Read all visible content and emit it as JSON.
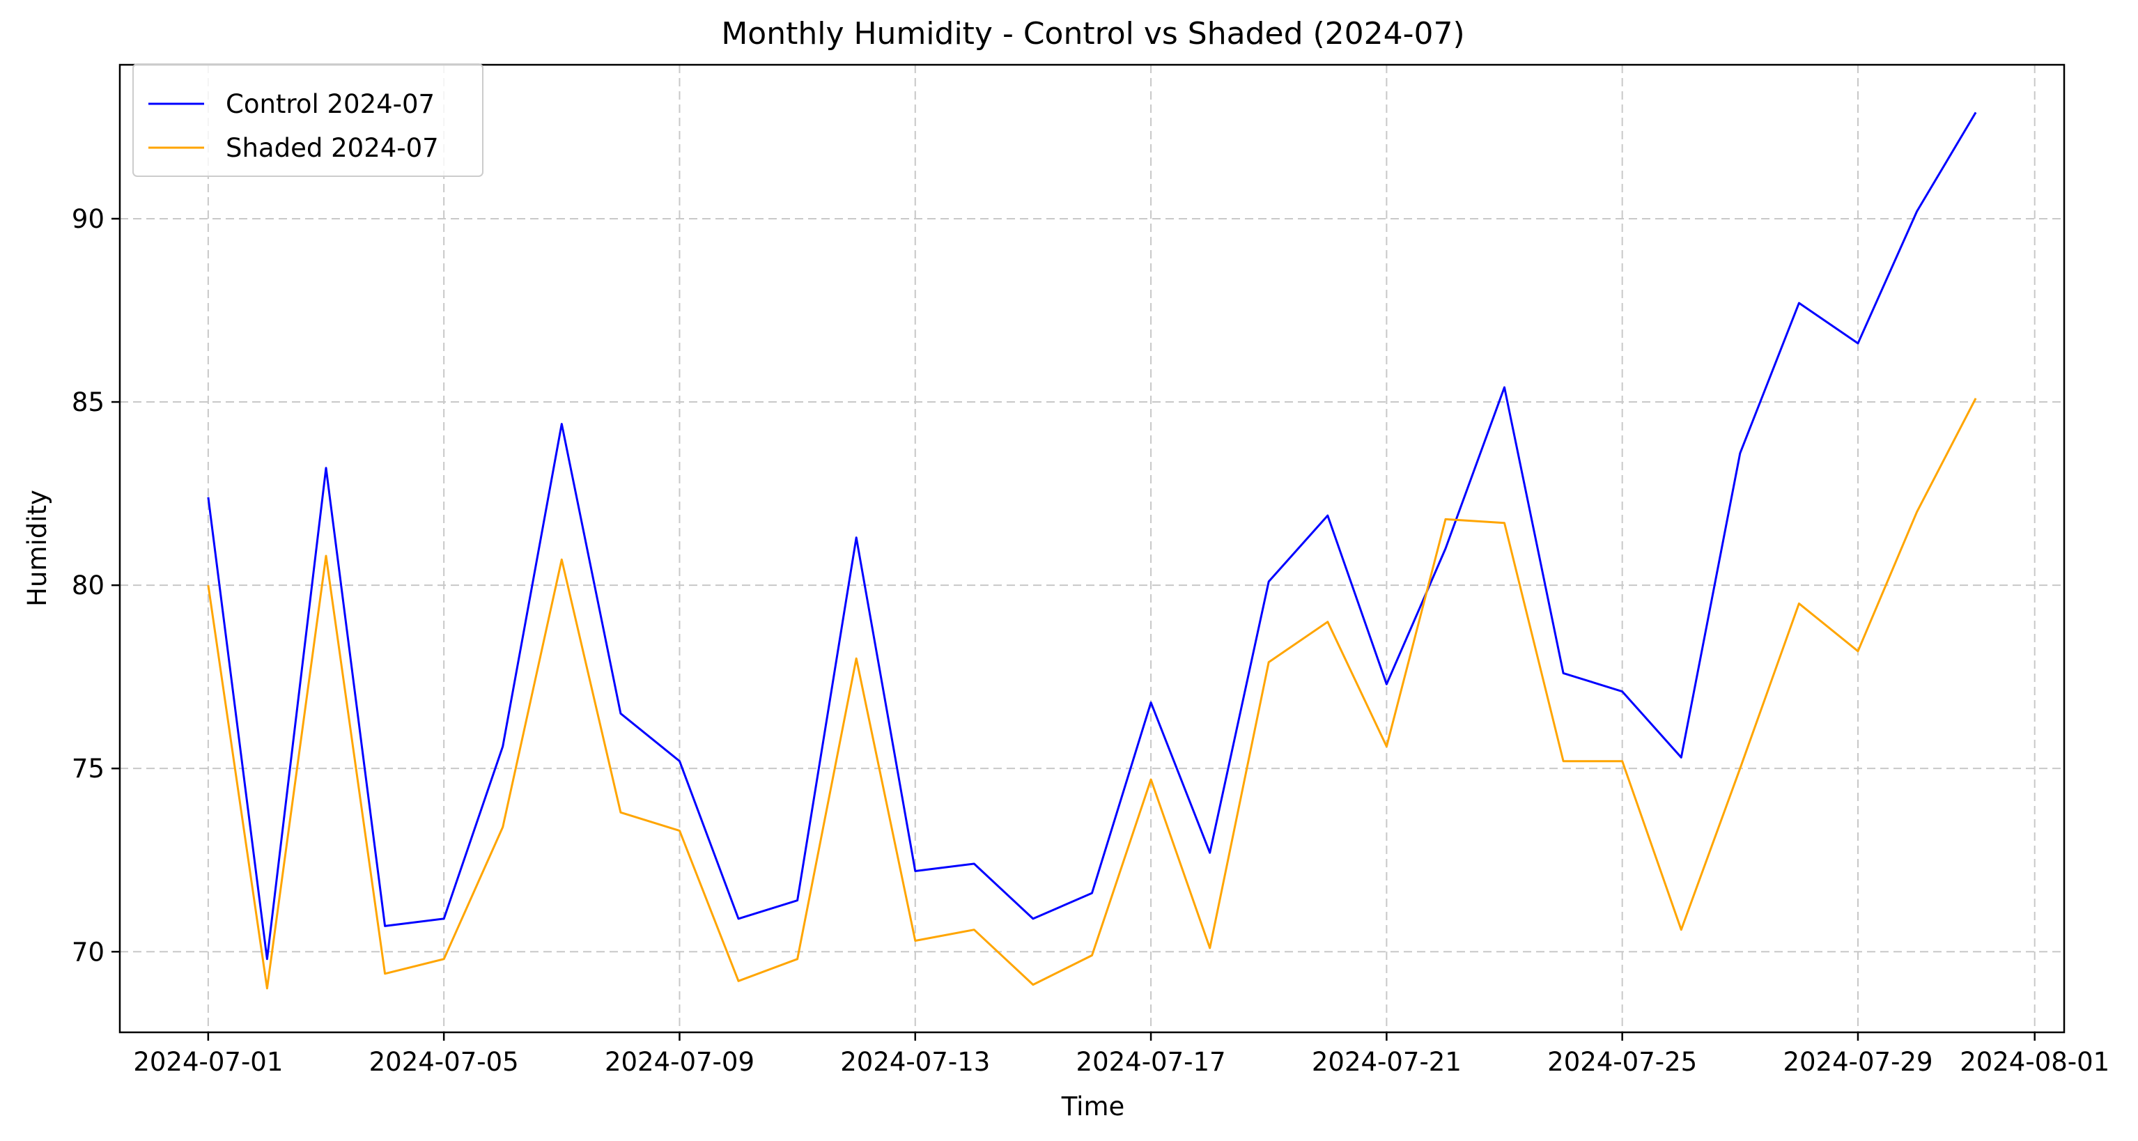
{
  "chart_data": {
    "type": "line",
    "title": "Monthly Humidity - Control vs Shaded (2024-07)",
    "xlabel": "Time",
    "ylabel": "Humidity",
    "x": [
      "2024-07-01",
      "2024-07-02",
      "2024-07-03",
      "2024-07-04",
      "2024-07-05",
      "2024-07-06",
      "2024-07-07",
      "2024-07-08",
      "2024-07-09",
      "2024-07-10",
      "2024-07-11",
      "2024-07-12",
      "2024-07-13",
      "2024-07-14",
      "2024-07-15",
      "2024-07-16",
      "2024-07-17",
      "2024-07-18",
      "2024-07-19",
      "2024-07-20",
      "2024-07-21",
      "2024-07-22",
      "2024-07-23",
      "2024-07-24",
      "2024-07-25",
      "2024-07-26",
      "2024-07-27",
      "2024-07-28",
      "2024-07-29",
      "2024-07-30",
      "2024-07-31"
    ],
    "xlim": [
      "2024-06-29T12:00",
      "2024-08-01T12:00"
    ],
    "ylim": [
      67.8,
      94.2
    ],
    "x_ticks": [
      "2024-07-01",
      "2024-07-05",
      "2024-07-09",
      "2024-07-13",
      "2024-07-17",
      "2024-07-21",
      "2024-07-25",
      "2024-07-29",
      "2024-08-01"
    ],
    "y_ticks": [
      70,
      75,
      80,
      85,
      90
    ],
    "grid": true,
    "legend_position": "top-left",
    "series": [
      {
        "name": "Control 2024-07",
        "color": "#0000ff",
        "values": [
          82.4,
          69.8,
          83.2,
          70.7,
          70.9,
          75.6,
          84.4,
          76.5,
          75.2,
          70.9,
          71.4,
          81.3,
          72.2,
          72.4,
          70.9,
          71.6,
          76.8,
          72.7,
          80.1,
          81.9,
          77.3,
          81.0,
          85.4,
          77.6,
          77.1,
          75.3,
          83.6,
          87.7,
          86.6,
          90.2,
          92.9
        ]
      },
      {
        "name": "Shaded 2024-07",
        "color": "#ffa500",
        "values": [
          80.0,
          69.0,
          80.8,
          69.4,
          69.8,
          73.4,
          80.7,
          73.8,
          73.3,
          69.2,
          69.8,
          78.0,
          70.3,
          70.6,
          69.1,
          69.9,
          74.7,
          70.1,
          77.9,
          79.0,
          75.6,
          81.8,
          81.7,
          75.2,
          75.2,
          70.6,
          75.0,
          79.5,
          78.2,
          82.0,
          85.1
        ]
      }
    ]
  }
}
